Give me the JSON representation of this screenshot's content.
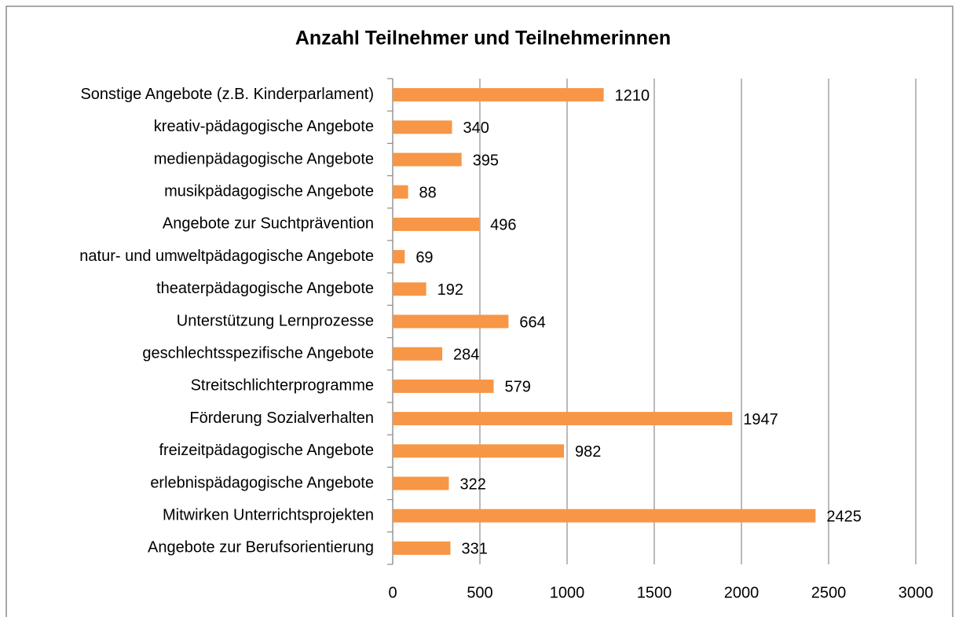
{
  "chart_data": {
    "type": "bar",
    "orientation": "horizontal",
    "title": "Anzahl Teilnehmer und Teilnehmerinnen",
    "categories": [
      "Sonstige Angebote (z.B. Kinderparlament)",
      "kreativ-pädagogische Angebote",
      "medienpädagogische Angebote",
      "musikpädagogische Angebote",
      "Angebote zur Suchtprävention",
      "natur- und umweltpädagogische Angebote",
      "theaterpädagogische Angebote",
      "Unterstützung Lernprozesse",
      "geschlechtsspezifische Angebote",
      "Streitschlichterprogramme",
      "Förderung Sozialverhalten",
      "freizeitpädagogische Angebote",
      "erlebnispädagogische Angebote",
      "Mitwirken Unterrichtsprojekten",
      "Angebote zur Berufsorientierung"
    ],
    "values": [
      1210,
      340,
      395,
      88,
      496,
      69,
      192,
      664,
      284,
      579,
      1947,
      982,
      322,
      2425,
      331
    ],
    "color": "#f79646",
    "xlim": [
      0,
      3000
    ],
    "xticks": [
      0,
      500,
      1000,
      1500,
      2000,
      2500,
      3000
    ],
    "grid": true
  }
}
